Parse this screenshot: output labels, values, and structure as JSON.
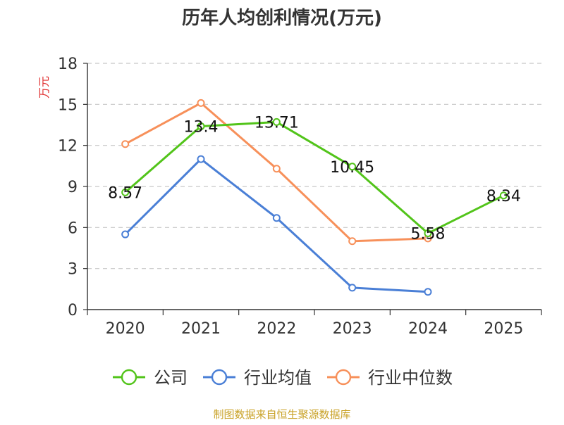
{
  "chart_data": {
    "type": "line",
    "title": "历年人均创利情况(万元)",
    "ylabel": "万元",
    "xlabel": "",
    "categories": [
      "2020",
      "2021",
      "2022",
      "2023",
      "2024",
      "2025"
    ],
    "ylim": [
      0,
      18
    ],
    "yticks": [
      "0",
      "3",
      "6",
      "9",
      "12",
      "15",
      "18"
    ],
    "grid": true,
    "legend_position": "bottom",
    "series": [
      {
        "name": "公司",
        "color": "#52c41a",
        "values": [
          8.57,
          13.4,
          13.71,
          10.45,
          5.58,
          8.34
        ],
        "labels": [
          "8.57",
          "13.4",
          "13.71",
          "10.45",
          "5.58",
          "8.34"
        ]
      },
      {
        "name": "行业均值",
        "color": "#4a7fd6",
        "values": [
          5.5,
          11.0,
          6.7,
          1.6,
          1.3,
          null
        ]
      },
      {
        "name": "行业中位数",
        "color": "#f7905a",
        "values": [
          12.1,
          15.1,
          10.3,
          5.0,
          5.2,
          null
        ]
      }
    ],
    "source": "制图数据来自恒生聚源数据库",
    "title_color": "#333333",
    "ylabel_color": "#e03030",
    "source_color": "#c9a227"
  }
}
